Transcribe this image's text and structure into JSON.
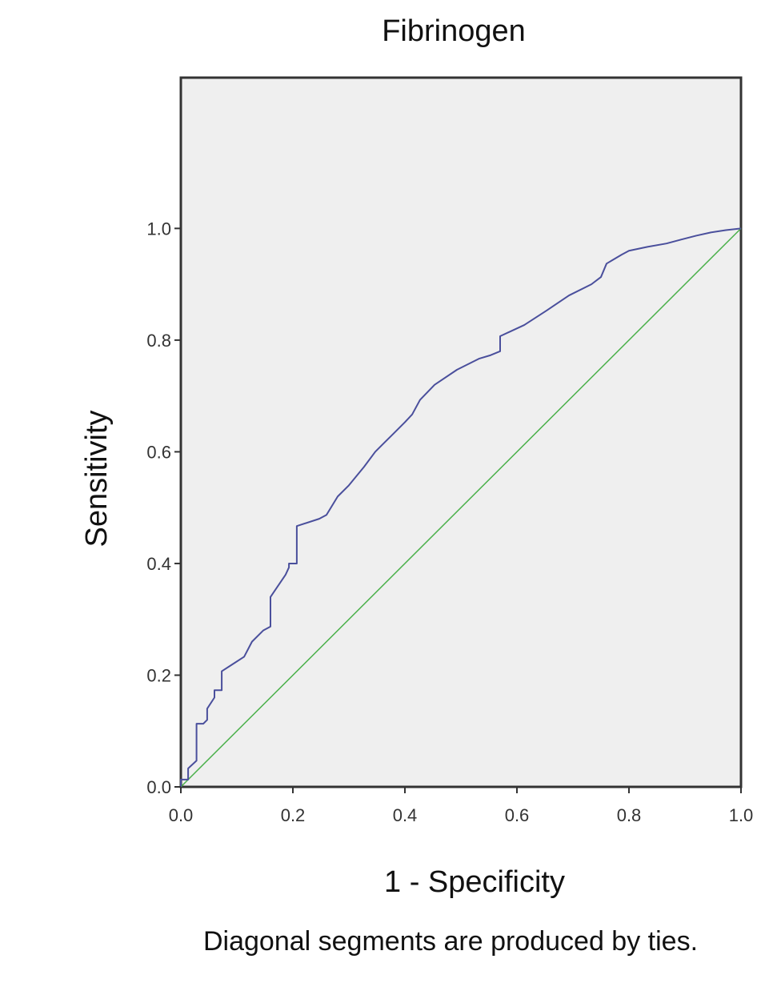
{
  "chart_data": {
    "type": "line",
    "title": "Fibrinogen",
    "xlabel": "1 - Specificity",
    "ylabel": "Sensitivity",
    "footnote": "Diagonal segments are produced by ties.",
    "xlim": [
      0,
      1
    ],
    "ylim": [
      0,
      1.27
    ],
    "x_ticks": [
      "0.0",
      "0.2",
      "0.4",
      "0.6",
      "0.8",
      "1.0"
    ],
    "y_ticks": [
      "0.0",
      "0.2",
      "0.4",
      "0.6",
      "0.8",
      "1.0"
    ],
    "grid": false,
    "background_color": "#efefef",
    "series": [
      {
        "color": "#4a4f9c",
        "x": [
          0.0,
          0.0,
          0.013,
          0.013,
          0.028,
          0.028,
          0.04,
          0.047,
          0.047,
          0.06,
          0.06,
          0.073,
          0.073,
          0.093,
          0.113,
          0.127,
          0.147,
          0.16,
          0.16,
          0.187,
          0.193,
          0.193,
          0.207,
          0.207,
          0.247,
          0.26,
          0.28,
          0.3,
          0.327,
          0.347,
          0.36,
          0.38,
          0.4,
          0.413,
          0.427,
          0.453,
          0.493,
          0.533,
          0.553,
          0.57,
          0.57,
          0.613,
          0.653,
          0.693,
          0.733,
          0.75,
          0.76,
          0.787,
          0.8,
          0.833,
          0.867,
          0.893,
          0.92,
          0.947,
          0.973,
          1.0
        ],
        "y": [
          0.0,
          0.013,
          0.013,
          0.033,
          0.047,
          0.113,
          0.113,
          0.12,
          0.14,
          0.16,
          0.173,
          0.173,
          0.207,
          0.22,
          0.233,
          0.26,
          0.28,
          0.287,
          0.34,
          0.38,
          0.393,
          0.4,
          0.4,
          0.467,
          0.48,
          0.487,
          0.52,
          0.54,
          0.573,
          0.6,
          0.613,
          0.633,
          0.653,
          0.667,
          0.693,
          0.72,
          0.747,
          0.767,
          0.773,
          0.78,
          0.807,
          0.827,
          0.853,
          0.88,
          0.9,
          0.913,
          0.937,
          0.953,
          0.96,
          0.967,
          0.973,
          0.98,
          0.987,
          0.993,
          0.997,
          1.0
        ]
      },
      {
        "color": "#4ab04a",
        "x": [
          0,
          1
        ],
        "y": [
          0,
          1
        ]
      }
    ]
  }
}
